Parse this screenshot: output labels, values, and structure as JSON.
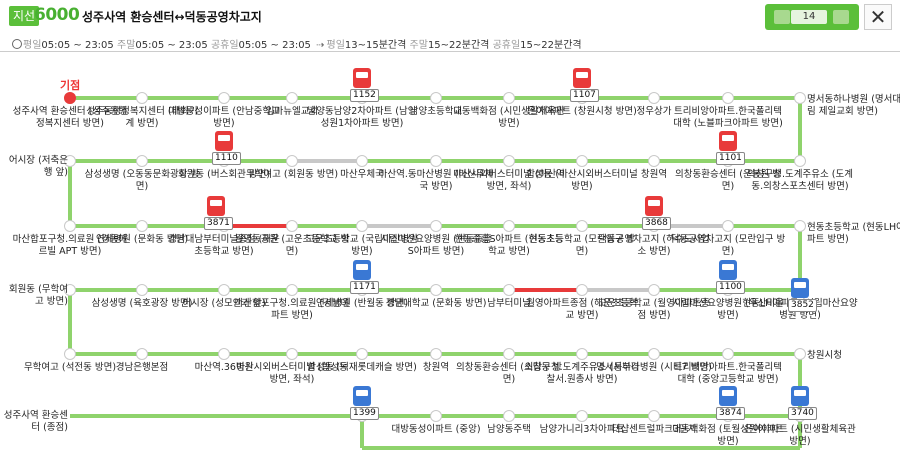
{
  "header": {
    "badge": "지선",
    "route_number": "6000",
    "route_name": "성주사역 환승센터↔덕동공영차고지",
    "weekday_label": "평일",
    "weekday_time": "05:05 ~ 23:05",
    "saturday_label": "주말",
    "saturday_time": "05:05 ~ 23:05",
    "holiday_label": "공휴일",
    "holiday_time": "05:05 ~ 23:05",
    "int_weekday_label": "평일",
    "int_weekday": "13~15분간격",
    "int_weekend_label": "주말",
    "int_weekend": "15~22분간격",
    "int_holiday_label": "공휴일",
    "int_holiday": "15~22분간격",
    "bus_count": "14",
    "close": "✕",
    "colors": {
      "accent": "#5bbf3a",
      "route_green": "#8fd36c",
      "congested_red": "#e83a3a",
      "bus_red": "#e83a3a",
      "bus_blue": "#3a78d4"
    }
  },
  "map": {
    "origin_label": "기점",
    "stops": [
      "성주사역 환승센터 (성주동행정복지센터 방면)",
      "성주동행정복지센터 (태화기계 방면)",
      "대방동성이파트 (안남중학교 방면)",
      "임마뉴엘교회",
      "남양동남양2차아파트 (남양성원1차아파트 방면)",
      "남양초등학교",
      "대동백화점 (시민생활체육관 방면)",
      "은아아파트 (창원시청 방면)",
      "정우상가",
      "트리비앙아파트.한국폴리텍대학 (노블파크아파트 방면)",
      "명서동하나병원 (명서대림 제일교회 방면)",
      "의창구청.도계주유소 (도계동.의창스포츠센터 방면)",
      "의창동환승센터 (운봉원 방면)",
      "창원역",
      "합성동 (마산시외버스터미널 방면)",
      "마산시외버스터미널 (마산역 방면, 좌석)",
      "마산역.동마산병원 (마산우체국 방면)",
      "마산우체국",
      "무학여고 (회원동 방면)",
      "회원동 (버스회관 방면)",
      "삼성생명 (오동동문화광장 방면)",
      "어시장 (저축은행 앞)",
      "마산합포구청.의료원 (경동메르빌 APT 방면)",
      "연세병원 (문화동 방면)",
      "경남대남부터미널종점 (해운초등학교 방면)",
      "월영동공원 (고운초등학교 방면)",
      "고운초등학교 (국립마산병원 방면)",
      "시립마산요양병원 (현동중흥S아파트 방면)",
      "현동중흥S아파트 (현동초등학교 방면)",
      "현동초등학교 (모란입구 방면)",
      "덕동공영차고지 (하수도사업소 방면)",
      "덕동공영차고지 (모란입구 방면)",
      "현동초등학교 (현동LH아파트 방면)",
      "현동LH아파트 (시립마산요양병원 방면)",
      "시립마산요양병원 (우산미을 방면)",
      "고운초등학교 (월영아파트종점 방면)",
      "월영아파트종점 (해운초등학교 방면)",
      "남부터미널",
      "경남대학교 (문화동 방면)",
      "연세병원 (반월동 방면)",
      "마산합포구청.의료원 (경남데파트 방면)",
      "어시장 (성모안과 앞)",
      "삼성생명 (육호광장 방면)",
      "회원동 (무학여고 방면)",
      "무학여고 (석전동 방면)",
      "경남은행본점",
      "마산역.36병원",
      "마산시외버스터미널 (합성동 방면, 좌석)",
      "합성동 (덕재롯데캐슬 방면)",
      "창원역",
      "의창동환승센터 (소답동 방면)",
      "의창구청.도계주유소 (서부경찰서.원총사 방면)",
      "명서동하나병원 (시티7 방면)",
      "트리비앙아파트.한국폴리텍대학 (중앙고등학교 방면)",
      "창원시청",
      "은아아파트 (시민생활체육관 방면)",
      "대동백화점 (토월성원아파트 방면)",
      "더샵센트럴파크3단지",
      "남양가니리3차아파트",
      "남양동주택",
      "대방동성이파트 (중앙)",
      "성주사역 환승센터 (종점)"
    ],
    "buses": [
      "1152",
      "1107",
      "1110",
      "1101",
      "3871",
      "3868",
      "1100",
      "1171",
      "3852",
      "1399",
      "3874",
      "3740"
    ]
  }
}
